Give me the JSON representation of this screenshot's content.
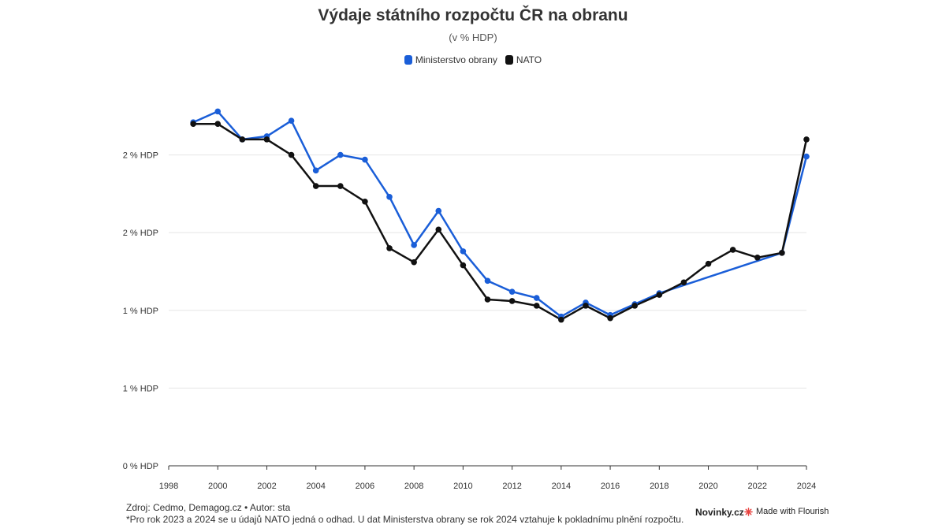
{
  "chart_data": {
    "type": "line",
    "title": "Výdaje státního rozpočtu ČR na obranu",
    "subtitle": "(v % HDP)",
    "xlabel": "",
    "ylabel": "",
    "x": [
      1999,
      2000,
      2001,
      2002,
      2003,
      2004,
      2005,
      2006,
      2007,
      2008,
      2009,
      2010,
      2011,
      2012,
      2013,
      2014,
      2015,
      2016,
      2017,
      2018,
      2019,
      2020,
      2021,
      2022,
      2023,
      2024
    ],
    "series": [
      {
        "name": "Ministerstvo obrany",
        "color": "#1a5ed8",
        "values": [
          2.21,
          2.28,
          2.1,
          2.12,
          2.22,
          1.9,
          2.0,
          1.97,
          1.73,
          1.42,
          1.64,
          1.38,
          1.19,
          1.12,
          1.08,
          0.96,
          1.05,
          0.97,
          1.04,
          1.11,
          null,
          null,
          null,
          null,
          1.37,
          1.99
        ]
      },
      {
        "name": "NATO",
        "color": "#111111",
        "values": [
          2.2,
          2.2,
          2.1,
          2.1,
          2.0,
          1.8,
          1.8,
          1.7,
          1.4,
          1.31,
          1.52,
          1.29,
          1.07,
          1.06,
          1.03,
          0.94,
          1.03,
          0.95,
          1.03,
          1.1,
          1.18,
          1.3,
          1.39,
          1.34,
          1.37,
          2.1
        ]
      }
    ],
    "xlim": [
      1998,
      2024
    ],
    "ylim": [
      0,
      2.5
    ],
    "x_ticks": [
      "1998",
      "2000",
      "2002",
      "2004",
      "2006",
      "2008",
      "2010",
      "2012",
      "2014",
      "2016",
      "2018",
      "2020",
      "2022",
      "2024"
    ],
    "y_ticks": [
      {
        "value": 0,
        "label": "0 % HDP"
      },
      {
        "value": 0.5,
        "label": "1 % HDP"
      },
      {
        "value": 1.0,
        "label": "1 % HDP"
      },
      {
        "value": 1.5,
        "label": "2 % HDP"
      },
      {
        "value": 2.0,
        "label": "2 % HDP"
      }
    ],
    "grid": true,
    "legend_position": "top-center"
  },
  "footer": {
    "source": "Zdroj: Cedmo, Demagog.cz • Autor: sta",
    "note": "*Pro rok 2023 a 2024 se u údajů NATO jedná o odhad. U dat Ministerstva obrany se rok 2024 vztahuje k pokladnímu plnění rozpočtu."
  },
  "branding": {
    "novinky": "Novinky.cz",
    "flourish": "Made with Flourish",
    "flourish_icon": "flourish-logo-icon",
    "flourish_color": "#e8423f"
  }
}
